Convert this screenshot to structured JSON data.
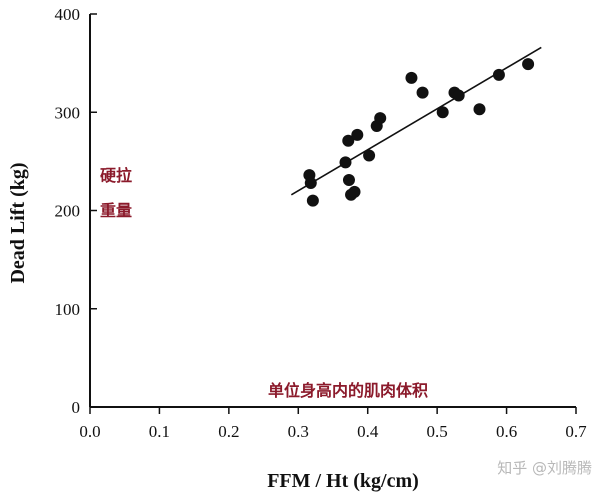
{
  "chart_data": {
    "type": "scatter",
    "xlabel": "FFM / Ht (kg/cm)",
    "ylabel": "Dead Lift (kg)",
    "xlim": [
      0.0,
      0.7
    ],
    "ylim": [
      0,
      400
    ],
    "xticks": [
      "0.0",
      "0.1",
      "0.2",
      "0.3",
      "0.4",
      "0.5",
      "0.6",
      "0.7"
    ],
    "yticks": [
      "0",
      "100",
      "200",
      "300",
      "400"
    ],
    "grid": false,
    "points": [
      {
        "x": 0.316,
        "y": 236
      },
      {
        "x": 0.318,
        "y": 228
      },
      {
        "x": 0.321,
        "y": 210
      },
      {
        "x": 0.368,
        "y": 249
      },
      {
        "x": 0.372,
        "y": 271
      },
      {
        "x": 0.373,
        "y": 231
      },
      {
        "x": 0.376,
        "y": 216
      },
      {
        "x": 0.381,
        "y": 219
      },
      {
        "x": 0.385,
        "y": 277
      },
      {
        "x": 0.402,
        "y": 256
      },
      {
        "x": 0.413,
        "y": 286
      },
      {
        "x": 0.418,
        "y": 294
      },
      {
        "x": 0.463,
        "y": 335
      },
      {
        "x": 0.479,
        "y": 320
      },
      {
        "x": 0.508,
        "y": 300
      },
      {
        "x": 0.525,
        "y": 320
      },
      {
        "x": 0.531,
        "y": 317
      },
      {
        "x": 0.561,
        "y": 303
      },
      {
        "x": 0.589,
        "y": 338
      },
      {
        "x": 0.631,
        "y": 349
      }
    ],
    "trendline": {
      "x": [
        0.29,
        0.65
      ],
      "y": [
        216,
        366
      ]
    },
    "annotations": [
      {
        "text": "硬拉",
        "color": "#8b1a2b"
      },
      {
        "text": "重量",
        "color": "#8b1a2b"
      },
      {
        "text": "单位身高内的肌肉体积",
        "color": "#8b1a2b"
      }
    ]
  },
  "watermark": "知乎 @刘腾腾"
}
